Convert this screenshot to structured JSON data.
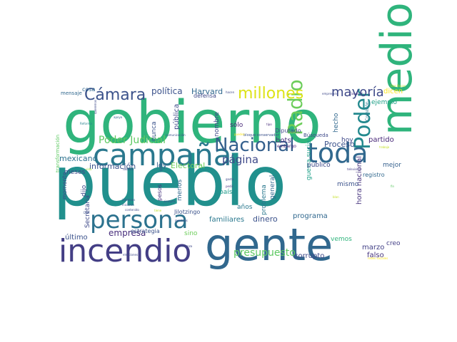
{
  "words": [
    {
      "text": "gobierno",
      "color": "#2fb47c"
    },
    {
      "text": "pueblo",
      "color": "#21908d"
    },
    {
      "text": "gente",
      "color": "#31688e"
    },
    {
      "text": "medio",
      "color": "#2fb47c"
    },
    {
      "text": "incendio",
      "color": "#433e85"
    },
    {
      "text": "campaña",
      "color": "#2a788e"
    },
    {
      "text": "persona",
      "color": "#2c728e"
    },
    {
      "text": "toda",
      "color": "#31688e"
    },
    {
      "text": "Nacional",
      "color": "#35608d"
    },
    {
      "text": "Poder",
      "color": "#23898e"
    },
    {
      "text": "Radio",
      "color": "#6ccd5a"
    },
    {
      "text": "Cámara",
      "color": "#3b528b"
    },
    {
      "text": "millones",
      "color": "#dde318"
    },
    {
      "text": "mayoría",
      "color": "#3e4989"
    },
    {
      "text": "presupuesto",
      "color": "#5ec962"
    },
    {
      "text": "Poder Judicial",
      "color": "#5ec962"
    },
    {
      "text": "página",
      "color": "#3e4989"
    },
    {
      "text": "política",
      "color": "#3b528b"
    },
    {
      "text": "Harvard",
      "color": "#31688e"
    },
    {
      "text": "empresa",
      "color": "#472d7b"
    },
    {
      "text": "información",
      "color": "#3b528b"
    },
    {
      "text": "mexicano",
      "color": "#2c728e"
    },
    {
      "text": "hora nacional",
      "color": "#46337e"
    },
    {
      "text": "familiares",
      "color": "#2a788e"
    },
    {
      "text": "dinero",
      "color": "#3b528b"
    },
    {
      "text": "programa",
      "color": "#31688e"
    },
    {
      "text": "Proceso",
      "color": "#3b528b"
    },
    {
      "text": "partido",
      "color": "#482878"
    },
    {
      "text": "corrupto",
      "color": "#3e4989"
    },
    {
      "text": "falso",
      "color": "#46337e"
    },
    {
      "text": "marzo",
      "color": "#424086"
    },
    {
      "text": "dicen",
      "color": "#fde725"
    },
    {
      "text": "ejemplo",
      "color": "#1fa088"
    },
    {
      "text": "hoy",
      "color": "#3e4989"
    },
    {
      "text": "mejor",
      "color": "#35608d"
    },
    {
      "text": "mismo",
      "color": "#3b528b"
    },
    {
      "text": "creo",
      "color": "#433e85"
    },
    {
      "text": "registro",
      "color": "#31688e"
    },
    {
      "text": "vemos",
      "color": "#2fb47c"
    },
    {
      "text": "guerra sucia",
      "color": "#1fa088"
    },
    {
      "text": "público",
      "color": "#3e4989"
    },
    {
      "text": "general",
      "color": "#31688e"
    },
    {
      "text": "problema",
      "color": "#2a788e"
    },
    {
      "text": "país",
      "color": "#1f9a8a"
    },
    {
      "text": "años",
      "color": "#2a788e"
    },
    {
      "text": "Electoral",
      "color": "#6ccd5a"
    },
    {
      "text": "ley",
      "color": "#35608d"
    },
    {
      "text": "Secretaria",
      "color": "#3e4989"
    },
    {
      "text": "pesos",
      "color": "#46337e"
    },
    {
      "text": "menos",
      "color": "#31688e"
    },
    {
      "text": "dijo",
      "color": "#3e4989"
    },
    {
      "text": "meses",
      "color": "#3e4989"
    },
    {
      "text": "momento",
      "color": "#3e4989"
    },
    {
      "text": "último",
      "color": "#3b528b"
    },
    {
      "text": "sino",
      "color": "#6ccd5a"
    },
    {
      "text": "estrategia",
      "color": "#3b528b"
    },
    {
      "text": "nunca",
      "color": "#3b528b"
    },
    {
      "text": "pública",
      "color": "#3e4989"
    },
    {
      "text": "nombre",
      "color": "#3e4989"
    },
    {
      "text": "sólo",
      "color": "#482878"
    },
    {
      "text": "bots",
      "color": "#472d7b"
    },
    {
      "text": "Diputado",
      "color": "#3e4989"
    },
    {
      "text": "Búsqueda",
      "color": "#3e4989"
    },
    {
      "text": "hecho",
      "color": "#31688e"
    },
    {
      "text": "defensa",
      "color": "#3e4989"
    },
    {
      "text": "cosa",
      "color": "#31688e"
    },
    {
      "text": "mensaje",
      "color": "#31688e"
    },
    {
      "text": "Jilotzingo",
      "color": "#3b528b"
    },
    {
      "text": "transformación",
      "color": "#5ec962"
    },
    {
      "text": "Comisión",
      "color": "#2a788e"
    },
    {
      "text": "embargo",
      "color": "#482878"
    },
    {
      "text": "bloque conservador",
      "color": "#3b528b"
    },
    {
      "text": "comunicación",
      "color": "#3b528b"
    },
    {
      "text": "Reforma",
      "color": "#26828e"
    },
    {
      "text": "apoyo",
      "color": "#31688e"
    },
    {
      "text": "televisión",
      "color": "#433e85"
    },
    {
      "text": "todavía",
      "color": "#3e4989"
    },
    {
      "text": "contenido",
      "color": "#3e4989"
    },
    {
      "text": "intereses",
      "color": "#3b528b"
    },
    {
      "text": "iniciaron",
      "color": "#3b528b"
    },
    {
      "text": "siempre",
      "color": "#3b528b"
    },
    {
      "text": "mentiras",
      "color": "#3e4989"
    },
    {
      "text": "confianza",
      "color": "#3e4989"
    },
    {
      "text": "elecciones",
      "color": "#3e4989"
    },
    {
      "text": "empresario",
      "color": "#3e4989"
    },
    {
      "text": "hacen",
      "color": "#3e4989"
    },
    {
      "text": "Claudio X",
      "color": "#46337e"
    },
    {
      "text": "Dos Bocas",
      "color": "#bddf26"
    },
    {
      "text": "trabajo",
      "color": "#c2df23"
    },
    {
      "text": "vida",
      "color": "#a2da37"
    },
    {
      "text": "DEA",
      "color": "#3b528b"
    },
    {
      "text": "puedes",
      "color": "#fde725"
    },
    {
      "text": "fin",
      "color": "#5ec962"
    },
    {
      "text": "tipo",
      "color": "#472d7b"
    },
    {
      "text": "queremos",
      "color": "#3e4989"
    },
    {
      "text": "gasto",
      "color": "#3e4989"
    },
    {
      "text": "pedir",
      "color": "#46337e"
    },
    {
      "text": "redes sociales",
      "color": "#fde725"
    },
    {
      "text": "tiene",
      "color": "#bddf26"
    },
    {
      "text": "blan",
      "color": "#c2df23"
    }
  ]
}
